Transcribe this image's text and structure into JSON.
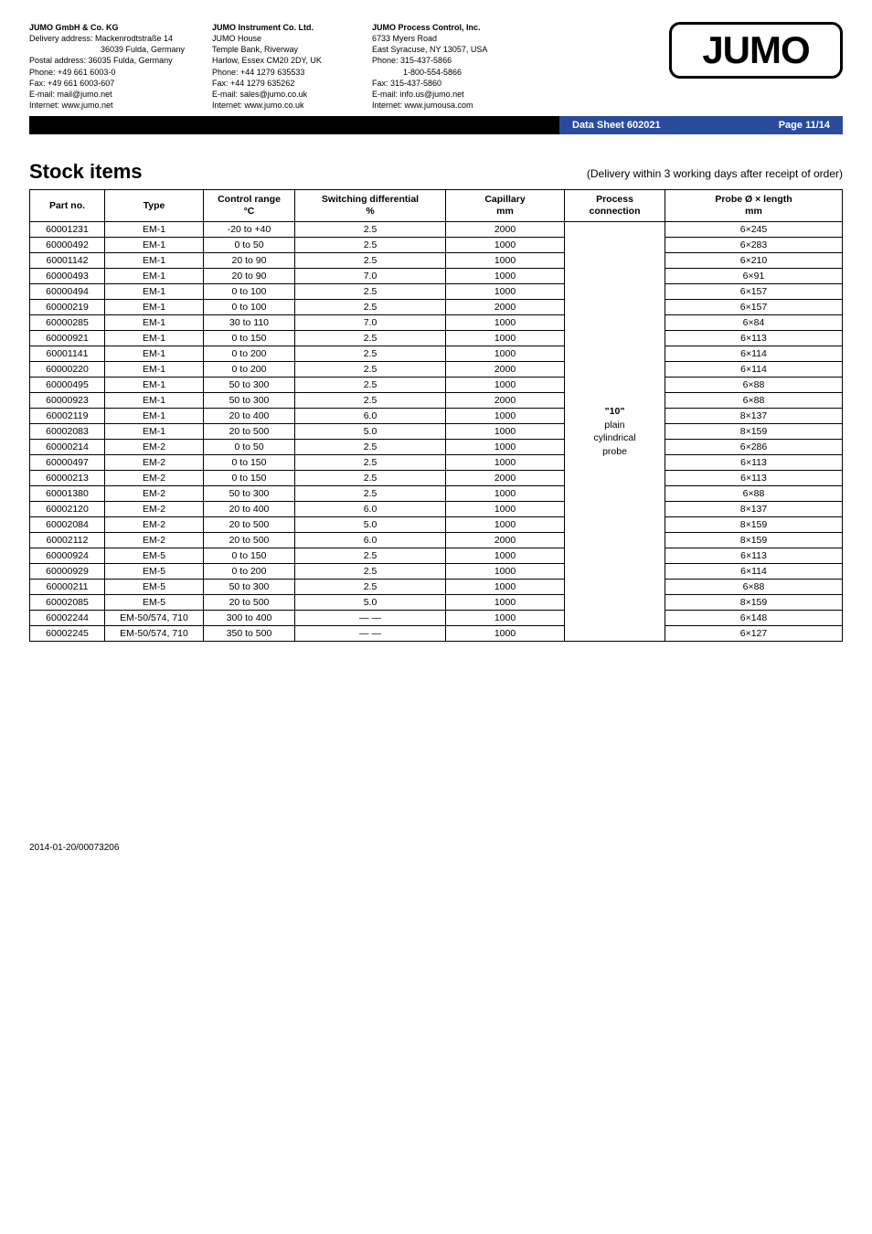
{
  "header": {
    "company1": {
      "name": "JUMO GmbH & Co. KG",
      "l1": "Delivery address: Mackenrodtstraße 14",
      "l2": "36039 Fulda, Germany",
      "l3": "Postal address: 36035 Fulda, Germany",
      "l4": "Phone: +49 661 6003-0",
      "l5": "Fax: +49 661 6003-607",
      "l6": "E-mail: mail@jumo.net",
      "l7": "Internet: www.jumo.net"
    },
    "company2": {
      "name": "JUMO Instrument Co. Ltd.",
      "l1": "JUMO House",
      "l2": "Temple Bank, Riverway",
      "l3": "Harlow, Essex CM20 2DY, UK",
      "l4": "Phone: +44 1279 635533",
      "l5": "Fax: +44 1279 635262",
      "l6": "E-mail: sales@jumo.co.uk",
      "l7": "Internet: www.jumo.co.uk"
    },
    "company3": {
      "name": "JUMO Process Control, Inc.",
      "l1": "6733 Myers Road",
      "l2": "East Syracuse, NY 13057, USA",
      "l3": "Phone: 315-437-5866",
      "l4": "1-800-554-5866",
      "l5": "Fax: 315-437-5860",
      "l6": "E-mail: info.us@jumo.net",
      "l7": "Internet: www.jumousa.com"
    },
    "logo_text": "JUMO",
    "datasheet": "Data Sheet 602021",
    "page": "Page 11/14"
  },
  "section_title": "Stock items",
  "delivery_note": "(Delivery within 3 working days after receipt of order)",
  "table": {
    "headers": {
      "part": "Part no.",
      "type": "Type",
      "range_l1": "Control range",
      "range_l2": "°C",
      "diff_l1": "Switching differential",
      "diff_l2": "%",
      "cap_l1": "Capillary",
      "cap_l2": "mm",
      "proc_l1": "Process",
      "proc_l2": "connection",
      "probe_l1": "Probe Ø × length",
      "probe_l2": "mm"
    },
    "process_connection": {
      "l1": "\"10\"",
      "l2": "plain",
      "l3": "cylindrical",
      "l4": "probe"
    },
    "rows": [
      {
        "part": "60001231",
        "type": "EM-1",
        "range": "-20 to +40",
        "diff": "2.5",
        "cap": "2000",
        "probe": "6×245"
      },
      {
        "part": "60000492",
        "type": "EM-1",
        "range": "0 to 50",
        "diff": "2.5",
        "cap": "1000",
        "probe": "6×283"
      },
      {
        "part": "60001142",
        "type": "EM-1",
        "range": "20 to 90",
        "diff": "2.5",
        "cap": "1000",
        "probe": "6×210"
      },
      {
        "part": "60000493",
        "type": "EM-1",
        "range": "20 to 90",
        "diff": "7.0",
        "cap": "1000",
        "probe": "6×91"
      },
      {
        "part": "60000494",
        "type": "EM-1",
        "range": "0 to 100",
        "diff": "2.5",
        "cap": "1000",
        "probe": "6×157"
      },
      {
        "part": "60000219",
        "type": "EM-1",
        "range": "0 to 100",
        "diff": "2.5",
        "cap": "2000",
        "probe": "6×157"
      },
      {
        "part": "60000285",
        "type": "EM-1",
        "range": "30 to 110",
        "diff": "7.0",
        "cap": "1000",
        "probe": "6×84"
      },
      {
        "part": "60000921",
        "type": "EM-1",
        "range": "0 to 150",
        "diff": "2.5",
        "cap": "1000",
        "probe": "6×113"
      },
      {
        "part": "60001141",
        "type": "EM-1",
        "range": "0 to 200",
        "diff": "2.5",
        "cap": "1000",
        "probe": "6×114"
      },
      {
        "part": "60000220",
        "type": "EM-1",
        "range": "0 to 200",
        "diff": "2.5",
        "cap": "2000",
        "probe": "6×114"
      },
      {
        "part": "60000495",
        "type": "EM-1",
        "range": "50 to 300",
        "diff": "2.5",
        "cap": "1000",
        "probe": "6×88"
      },
      {
        "part": "60000923",
        "type": "EM-1",
        "range": "50 to 300",
        "diff": "2.5",
        "cap": "2000",
        "probe": "6×88"
      },
      {
        "part": "60002119",
        "type": "EM-1",
        "range": "20 to 400",
        "diff": "6.0",
        "cap": "1000",
        "probe": "8×137"
      },
      {
        "part": "60002083",
        "type": "EM-1",
        "range": "20 to 500",
        "diff": "5.0",
        "cap": "1000",
        "probe": "8×159"
      },
      {
        "part": "60000214",
        "type": "EM-2",
        "range": "0 to 50",
        "diff": "2.5",
        "cap": "1000",
        "probe": "6×286"
      },
      {
        "part": "60000497",
        "type": "EM-2",
        "range": "0 to 150",
        "diff": "2.5",
        "cap": "1000",
        "probe": "6×113"
      },
      {
        "part": "60000213",
        "type": "EM-2",
        "range": "0 to 150",
        "diff": "2.5",
        "cap": "2000",
        "probe": "6×113"
      },
      {
        "part": "60001380",
        "type": "EM-2",
        "range": "50 to 300",
        "diff": "2.5",
        "cap": "1000",
        "probe": "6×88"
      },
      {
        "part": "60002120",
        "type": "EM-2",
        "range": "20 to 400",
        "diff": "6.0",
        "cap": "1000",
        "probe": "8×137"
      },
      {
        "part": "60002084",
        "type": "EM-2",
        "range": "20 to 500",
        "diff": "5.0",
        "cap": "1000",
        "probe": "8×159"
      },
      {
        "part": "60002112",
        "type": "EM-2",
        "range": "20 to 500",
        "diff": "6.0",
        "cap": "2000",
        "probe": "8×159"
      },
      {
        "part": "60000924",
        "type": "EM-5",
        "range": "0 to 150",
        "diff": "2.5",
        "cap": "1000",
        "probe": "6×113"
      },
      {
        "part": "60000929",
        "type": "EM-5",
        "range": "0 to 200",
        "diff": "2.5",
        "cap": "1000",
        "probe": "6×114"
      },
      {
        "part": "60000211",
        "type": "EM-5",
        "range": "50 to 300",
        "diff": "2.5",
        "cap": "1000",
        "probe": "6×88"
      },
      {
        "part": "60002085",
        "type": "EM-5",
        "range": "20 to 500",
        "diff": "5.0",
        "cap": "1000",
        "probe": "8×159"
      },
      {
        "part": "60002244",
        "type": "EM-50/574, 710",
        "range": "300 to 400",
        "diff": "— —",
        "cap": "1000",
        "probe": "6×148"
      },
      {
        "part": "60002245",
        "type": "EM-50/574, 710",
        "range": "350 to 500",
        "diff": "— —",
        "cap": "1000",
        "probe": "6×127"
      }
    ]
  },
  "footer": "2014-01-20/00073206"
}
